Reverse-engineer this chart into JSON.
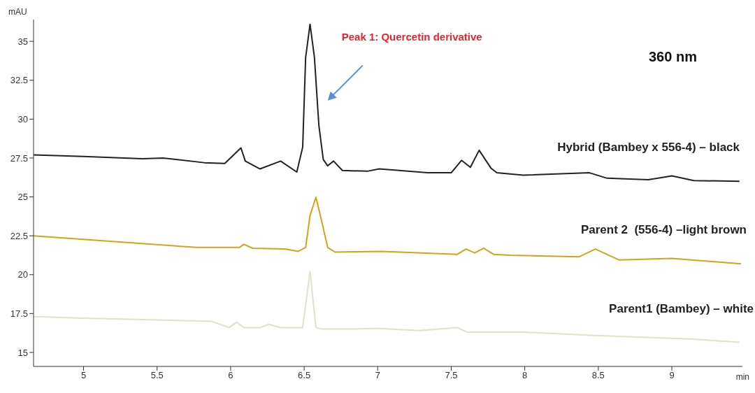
{
  "chart_data": {
    "type": "line",
    "xlabel": "min",
    "ylabel": "mAU",
    "xlim": [
      4.66,
      9.48
    ],
    "ylim": [
      14.1,
      36.4
    ],
    "xticks": [
      5,
      5.5,
      6,
      6.5,
      7,
      7.5,
      8,
      8.5,
      9
    ],
    "yticks": [
      15,
      17.5,
      20,
      22.5,
      25,
      27.5,
      30,
      32.5,
      35
    ],
    "annotations": [
      "Peak 1: Quercetin derivative",
      "360 nm"
    ],
    "series": [
      {
        "name": "Hybrid (Bambey x 556-4) – black",
        "color": "#222222",
        "x": [
          4.66,
          5.0,
          5.4,
          5.54,
          5.82,
          5.96,
          6.07,
          6.1,
          6.2,
          6.34,
          6.45,
          6.49,
          6.51,
          6.54,
          6.57,
          6.6,
          6.63,
          6.66,
          6.7,
          6.76,
          6.93,
          7.01,
          7.34,
          7.5,
          7.57,
          7.63,
          7.69,
          7.77,
          7.81,
          7.99,
          8.44,
          8.56,
          8.84,
          9.0,
          9.15,
          9.46
        ],
        "values": [
          27.7,
          27.6,
          27.45,
          27.5,
          27.2,
          27.15,
          28.15,
          27.3,
          26.8,
          27.3,
          26.6,
          28.2,
          33.95,
          36.1,
          33.95,
          29.6,
          27.4,
          27.0,
          27.3,
          26.7,
          26.65,
          26.8,
          26.55,
          26.55,
          27.35,
          26.9,
          28.0,
          26.85,
          26.55,
          26.4,
          26.55,
          26.2,
          26.1,
          26.35,
          26.05,
          26.0
        ]
      },
      {
        "name": "Parent 2  (556-4) –light brown",
        "color": "#d4a21c",
        "x": [
          4.66,
          5.77,
          6.06,
          6.09,
          6.15,
          6.37,
          6.46,
          6.51,
          6.54,
          6.58,
          6.61,
          6.66,
          6.71,
          7.03,
          7.54,
          7.6,
          7.66,
          7.72,
          7.79,
          7.9,
          8.37,
          8.48,
          8.64,
          9.0,
          9.47
        ],
        "values": [
          22.5,
          21.75,
          21.75,
          21.95,
          21.7,
          21.65,
          21.5,
          21.75,
          23.8,
          24.98,
          23.8,
          21.75,
          21.45,
          21.5,
          21.3,
          21.65,
          21.4,
          21.7,
          21.3,
          21.25,
          21.15,
          21.65,
          20.95,
          21.05,
          20.7
        ]
      },
      {
        "name": "Parent1 (Bambey) – white",
        "color": "#e3dfc8",
        "x": [
          4.66,
          5.0,
          5.87,
          5.99,
          6.04,
          6.09,
          6.2,
          6.26,
          6.34,
          6.49,
          6.54,
          6.58,
          6.62,
          6.85,
          6.99,
          7.28,
          7.54,
          7.61,
          8.0,
          8.45,
          9.15,
          9.46
        ],
        "values": [
          17.3,
          17.2,
          17.0,
          16.6,
          16.95,
          16.6,
          16.6,
          16.8,
          16.6,
          16.6,
          20.2,
          16.6,
          16.5,
          16.5,
          16.55,
          16.4,
          16.6,
          16.3,
          16.3,
          16.1,
          15.85,
          15.65
        ]
      }
    ]
  }
}
